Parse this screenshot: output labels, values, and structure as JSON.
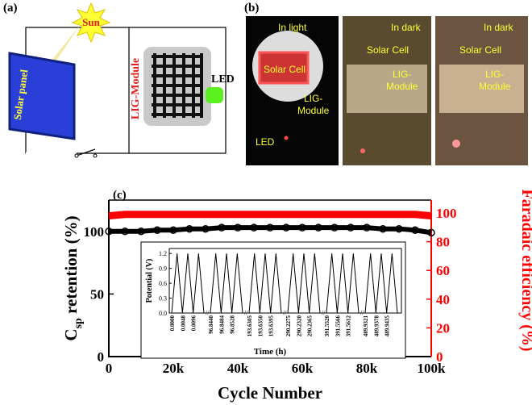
{
  "panel_a": {
    "label": "(a)",
    "sun": "Sun",
    "panel": "Solar panel",
    "module": "LIG-Module",
    "led": "LED"
  },
  "panel_b": {
    "label": "(b)",
    "photos": [
      {
        "state": "In light",
        "cell": "Solar Cell",
        "module": [
          "LIG-",
          "Module"
        ],
        "led": "LED"
      },
      {
        "state": "In dark",
        "cell": "Solar Cell",
        "module": [
          "LIG-",
          "Module"
        ]
      },
      {
        "state": "In dark",
        "cell": "Solar Cell",
        "module": [
          "LIG-",
          "Module"
        ]
      }
    ]
  },
  "panel_c_label": "(c)",
  "chart_data": [
    {
      "type": "scatter",
      "xlabel": "Cycle Number",
      "ylabel": [
        "C",
        "sp",
        " retention (%)"
      ],
      "y2label": "Faradaic efficiency (%)",
      "x": [
        0,
        5000,
        10000,
        15000,
        20000,
        25000,
        30000,
        35000,
        40000,
        45000,
        50000,
        55000,
        60000,
        65000,
        70000,
        75000,
        80000,
        85000,
        90000,
        95000,
        100000
      ],
      "xlim": [
        0,
        100000
      ],
      "xticks": [
        0,
        {
          "value": 20000,
          "label": "20k"
        },
        {
          "value": 40000,
          "label": "40k"
        },
        {
          "value": 60000,
          "label": "60k"
        },
        {
          "value": 80000,
          "label": "80k"
        },
        {
          "value": 100000,
          "label": "100k"
        }
      ],
      "ylim": [
        0,
        125
      ],
      "yticks": [
        0,
        50,
        100
      ],
      "y2lim": [
        0,
        109
      ],
      "y2ticks": [
        0,
        20,
        40,
        60,
        80,
        100
      ],
      "series": [
        {
          "color": "#000000",
          "values": [
            100,
            100,
            100,
            101,
            101,
            102,
            102,
            103,
            103,
            103,
            103,
            103,
            103,
            103,
            103,
            103,
            103,
            102,
            102,
            101,
            99
          ]
        },
        {
          "color": "#ff0000",
          "axis": "y2",
          "values": [
            98,
            99,
            99,
            99,
            99,
            99,
            99,
            99,
            99,
            99,
            99,
            99,
            99,
            99,
            99,
            99,
            99,
            99,
            99,
            99,
            98
          ]
        }
      ]
    },
    {
      "type": "line",
      "xlabel": "Time (h)",
      "ylabel": "Potential (V)",
      "color": "#000000",
      "ylim": [
        0,
        1.3
      ],
      "yticks": [
        {
          "value": 0,
          "label": "0.0"
        },
        {
          "value": 0.3,
          "label": "0.3"
        },
        {
          "value": 0.6,
          "label": "0.6"
        },
        {
          "value": 0.9,
          "label": "0.9"
        },
        {
          "value": 1.2,
          "label": "1.2"
        }
      ],
      "segments": [
        {
          "categories": [
            "0.0000",
            "0.0048",
            "0.0096"
          ],
          "values": [
            0,
            1.2,
            0,
            1.2,
            0,
            1.2,
            0
          ]
        },
        {
          "categories": [
            "96.8440",
            "96.8484",
            "96.8528"
          ],
          "values": [
            0,
            1.2,
            0,
            1.2,
            0,
            1.2,
            0
          ]
        },
        {
          "categories": [
            "193.6305",
            "193.6350",
            "193.6395"
          ],
          "values": [
            0,
            1.2,
            0,
            1.2,
            0,
            1.2,
            0
          ]
        },
        {
          "categories": [
            "290.2275",
            "290.2320",
            "290.2365"
          ],
          "values": [
            0,
            1.2,
            0,
            1.2,
            0,
            1.2,
            0
          ]
        },
        {
          "categories": [
            "391.5520",
            "391.5566",
            "391.5612"
          ],
          "values": [
            0,
            1.2,
            0,
            1.2,
            0,
            1.2,
            0
          ]
        },
        {
          "categories": [
            "489.9321",
            "489.9378",
            "489.9435"
          ],
          "values": [
            0,
            1.2,
            0,
            1.2,
            0,
            1.2,
            0
          ]
        }
      ]
    }
  ]
}
